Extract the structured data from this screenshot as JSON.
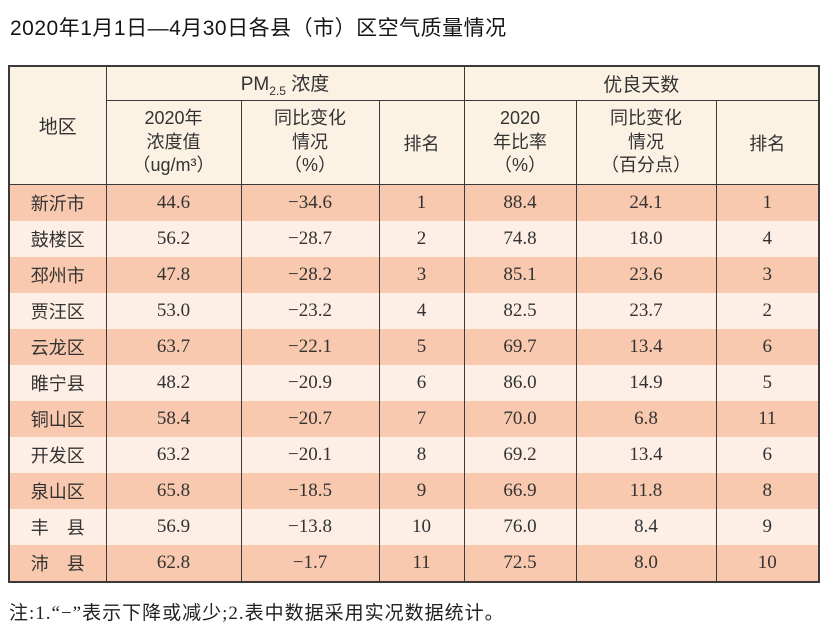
{
  "title": "2020年1月1日—4月30日各县（市）区空气质量情况",
  "note": "注:1.“−”表示下降或减少;2.表中数据采用实况数据统计。",
  "colors": {
    "border": "#3a3a3a",
    "header_bg": "#fbf2e4",
    "row_odd_bg": "#f8c9ae",
    "row_even_bg": "#fdeee6",
    "text": "#333333"
  },
  "table": {
    "corner_header": "地区",
    "group_pm": {
      "prefix": "PM",
      "sub": "2.5",
      "suffix": "浓度"
    },
    "group_days": "优良天数",
    "subheaders": [
      "2020年\n浓度值\n（ug/m³）",
      "同比变化\n情况\n（%）",
      "排名",
      "2020\n年比率\n（%）",
      "同比变化\n情况\n（百分点）",
      "排名"
    ],
    "columns_keys": [
      "region",
      "pm_value",
      "pm_change",
      "pm_rank",
      "days_ratio",
      "days_change",
      "days_rank"
    ],
    "rows": [
      {
        "region": "新沂市",
        "pm_value": "44.6",
        "pm_change": "−34.6",
        "pm_rank": "1",
        "days_ratio": "88.4",
        "days_change": "24.1",
        "days_rank": "1"
      },
      {
        "region": "鼓楼区",
        "pm_value": "56.2",
        "pm_change": "−28.7",
        "pm_rank": "2",
        "days_ratio": "74.8",
        "days_change": "18.0",
        "days_rank": "4"
      },
      {
        "region": "邳州市",
        "pm_value": "47.8",
        "pm_change": "−28.2",
        "pm_rank": "3",
        "days_ratio": "85.1",
        "days_change": "23.6",
        "days_rank": "3"
      },
      {
        "region": "贾汪区",
        "pm_value": "53.0",
        "pm_change": "−23.2",
        "pm_rank": "4",
        "days_ratio": "82.5",
        "days_change": "23.7",
        "days_rank": "2"
      },
      {
        "region": "云龙区",
        "pm_value": "63.7",
        "pm_change": "−22.1",
        "pm_rank": "5",
        "days_ratio": "69.7",
        "days_change": "13.4",
        "days_rank": "6"
      },
      {
        "region": "睢宁县",
        "pm_value": "48.2",
        "pm_change": "−20.9",
        "pm_rank": "6",
        "days_ratio": "86.0",
        "days_change": "14.9",
        "days_rank": "5"
      },
      {
        "region": "铜山区",
        "pm_value": "58.4",
        "pm_change": "−20.7",
        "pm_rank": "7",
        "days_ratio": "70.0",
        "days_change": "6.8",
        "days_rank": "11"
      },
      {
        "region": "开发区",
        "pm_value": "63.2",
        "pm_change": "−20.1",
        "pm_rank": "8",
        "days_ratio": "69.2",
        "days_change": "13.4",
        "days_rank": "6"
      },
      {
        "region": "泉山区",
        "pm_value": "65.8",
        "pm_change": "−18.5",
        "pm_rank": "9",
        "days_ratio": "66.9",
        "days_change": "11.8",
        "days_rank": "8"
      },
      {
        "region": "丰　县",
        "pm_value": "56.9",
        "pm_change": "−13.8",
        "pm_rank": "10",
        "days_ratio": "76.0",
        "days_change": "8.4",
        "days_rank": "9"
      },
      {
        "region": "沛　县",
        "pm_value": "62.8",
        "pm_change": "−1.7",
        "pm_rank": "11",
        "days_ratio": "72.5",
        "days_change": "8.0",
        "days_rank": "10"
      }
    ]
  }
}
